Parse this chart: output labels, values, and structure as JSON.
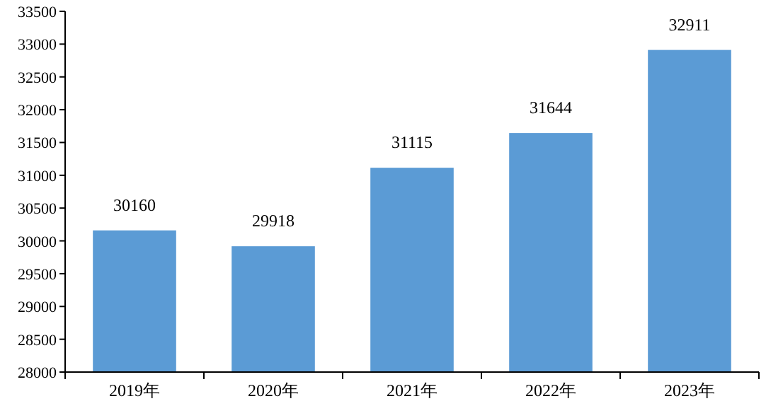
{
  "chart_data": {
    "type": "bar",
    "categories": [
      "2019年",
      "2020年",
      "2021年",
      "2022年",
      "2023年"
    ],
    "values": [
      30160,
      29918,
      31115,
      31644,
      32911
    ],
    "color": "#5b9bd5",
    "ylim": [
      28000,
      33500
    ],
    "yticks": [
      28000,
      28500,
      29000,
      29500,
      30000,
      30500,
      31000,
      31500,
      32000,
      32500,
      33000,
      33500
    ],
    "data_labels": true,
    "grid": false
  }
}
